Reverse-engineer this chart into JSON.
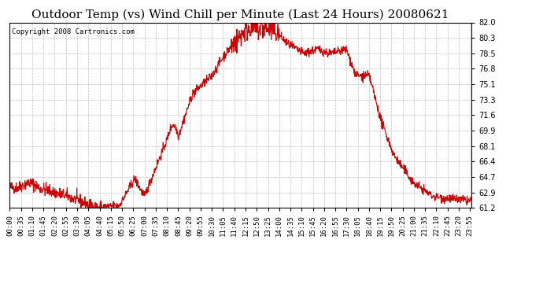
{
  "title": "Outdoor Temp (vs) Wind Chill per Minute (Last 24 Hours) 20080621",
  "copyright_text": "Copyright 2008 Cartronics.com",
  "line_color": "#cc0000",
  "background_color": "#ffffff",
  "plot_bg_color": "#ffffff",
  "grid_color": "#b0b0b0",
  "ylim": [
    61.2,
    82.0
  ],
  "yticks": [
    61.2,
    62.9,
    64.7,
    66.4,
    68.1,
    69.9,
    71.6,
    73.3,
    75.1,
    76.8,
    78.5,
    80.3,
    82.0
  ],
  "xtick_labels": [
    "00:00",
    "00:35",
    "01:10",
    "01:45",
    "02:20",
    "02:55",
    "03:30",
    "04:05",
    "04:40",
    "05:15",
    "05:50",
    "06:25",
    "07:00",
    "07:35",
    "08:10",
    "08:45",
    "09:20",
    "09:55",
    "10:30",
    "11:05",
    "11:40",
    "12:15",
    "12:50",
    "13:25",
    "14:00",
    "14:35",
    "15:10",
    "15:45",
    "16:20",
    "16:55",
    "17:30",
    "18:05",
    "18:40",
    "19:15",
    "19:50",
    "20:25",
    "21:00",
    "21:35",
    "22:10",
    "22:45",
    "23:20",
    "23:55"
  ],
  "n_points": 1440,
  "title_fontsize": 11,
  "copyright_fontsize": 6.5,
  "tick_fontsize": 6.5,
  "line_width": 0.8
}
